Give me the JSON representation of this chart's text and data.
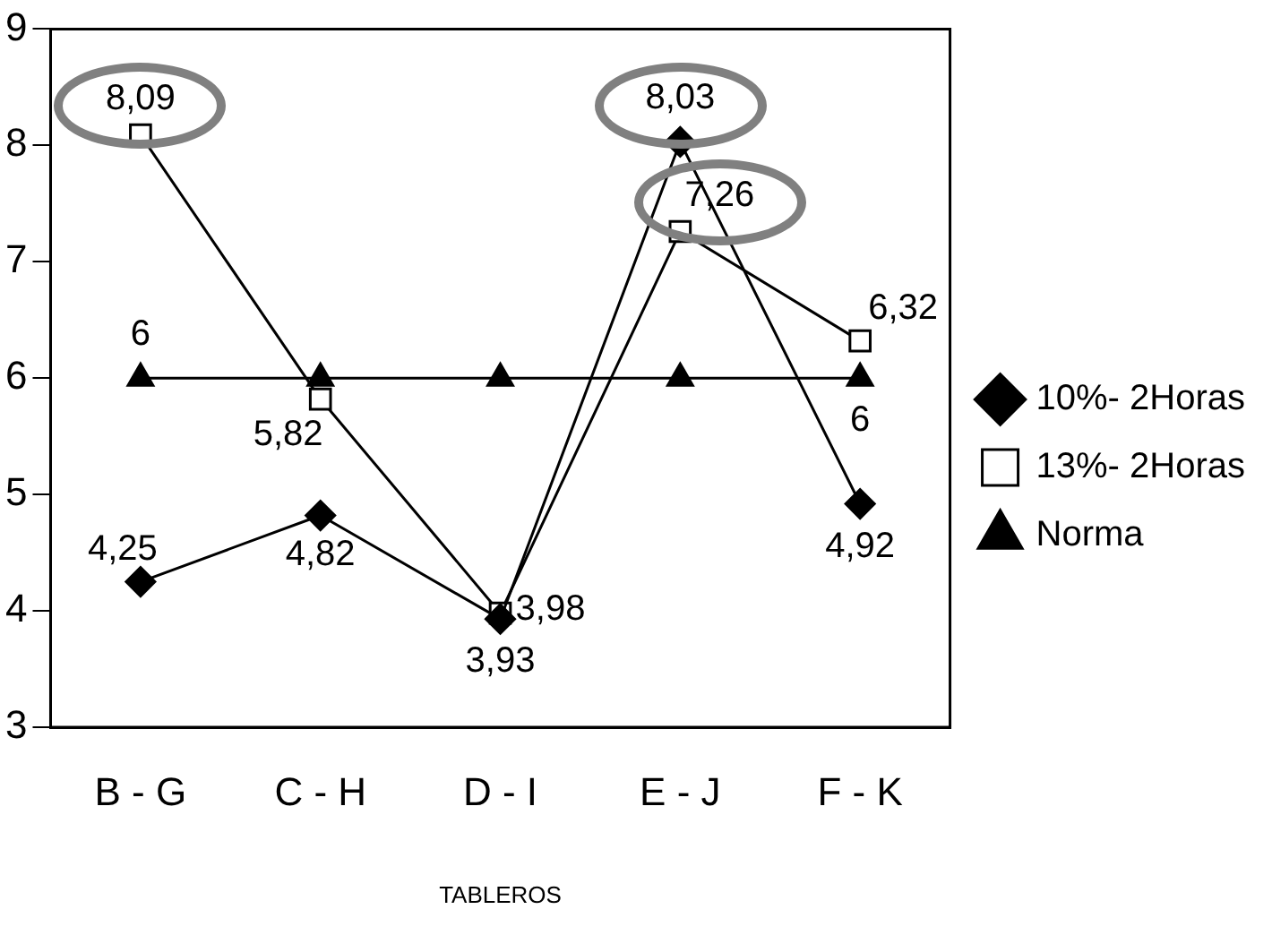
{
  "chart_data": {
    "type": "line",
    "xlabel": "TABLEROS",
    "categories": [
      "B - G",
      "C - H",
      "D - I",
      "E - J",
      "F - K"
    ],
    "series": [
      {
        "name": "10%- 2Horas",
        "color": "#000000",
        "marker": "diamond",
        "values": [
          4.25,
          4.82,
          3.93,
          8.03,
          4.92
        ],
        "value_labels": [
          "4,25",
          "4,82",
          "3,93",
          "8,03",
          "4,92"
        ]
      },
      {
        "name": "13%- 2Horas",
        "color": "#000000",
        "marker": "square",
        "values": [
          8.09,
          5.82,
          3.98,
          7.26,
          6.32
        ],
        "value_labels": [
          "8,09",
          "5,82",
          "3,98",
          "7,26",
          "6,32"
        ]
      },
      {
        "name": "Norma",
        "color": "#000000",
        "marker": "triangle",
        "values": [
          6,
          6,
          6,
          6,
          6
        ],
        "value_labels": [
          "6",
          null,
          null,
          null,
          "6"
        ]
      }
    ],
    "ylim": [
      3,
      9
    ],
    "yticks": [
      3,
      4,
      5,
      6,
      7,
      8,
      9
    ],
    "grid": false,
    "legend": "right",
    "line_style": "solid"
  }
}
